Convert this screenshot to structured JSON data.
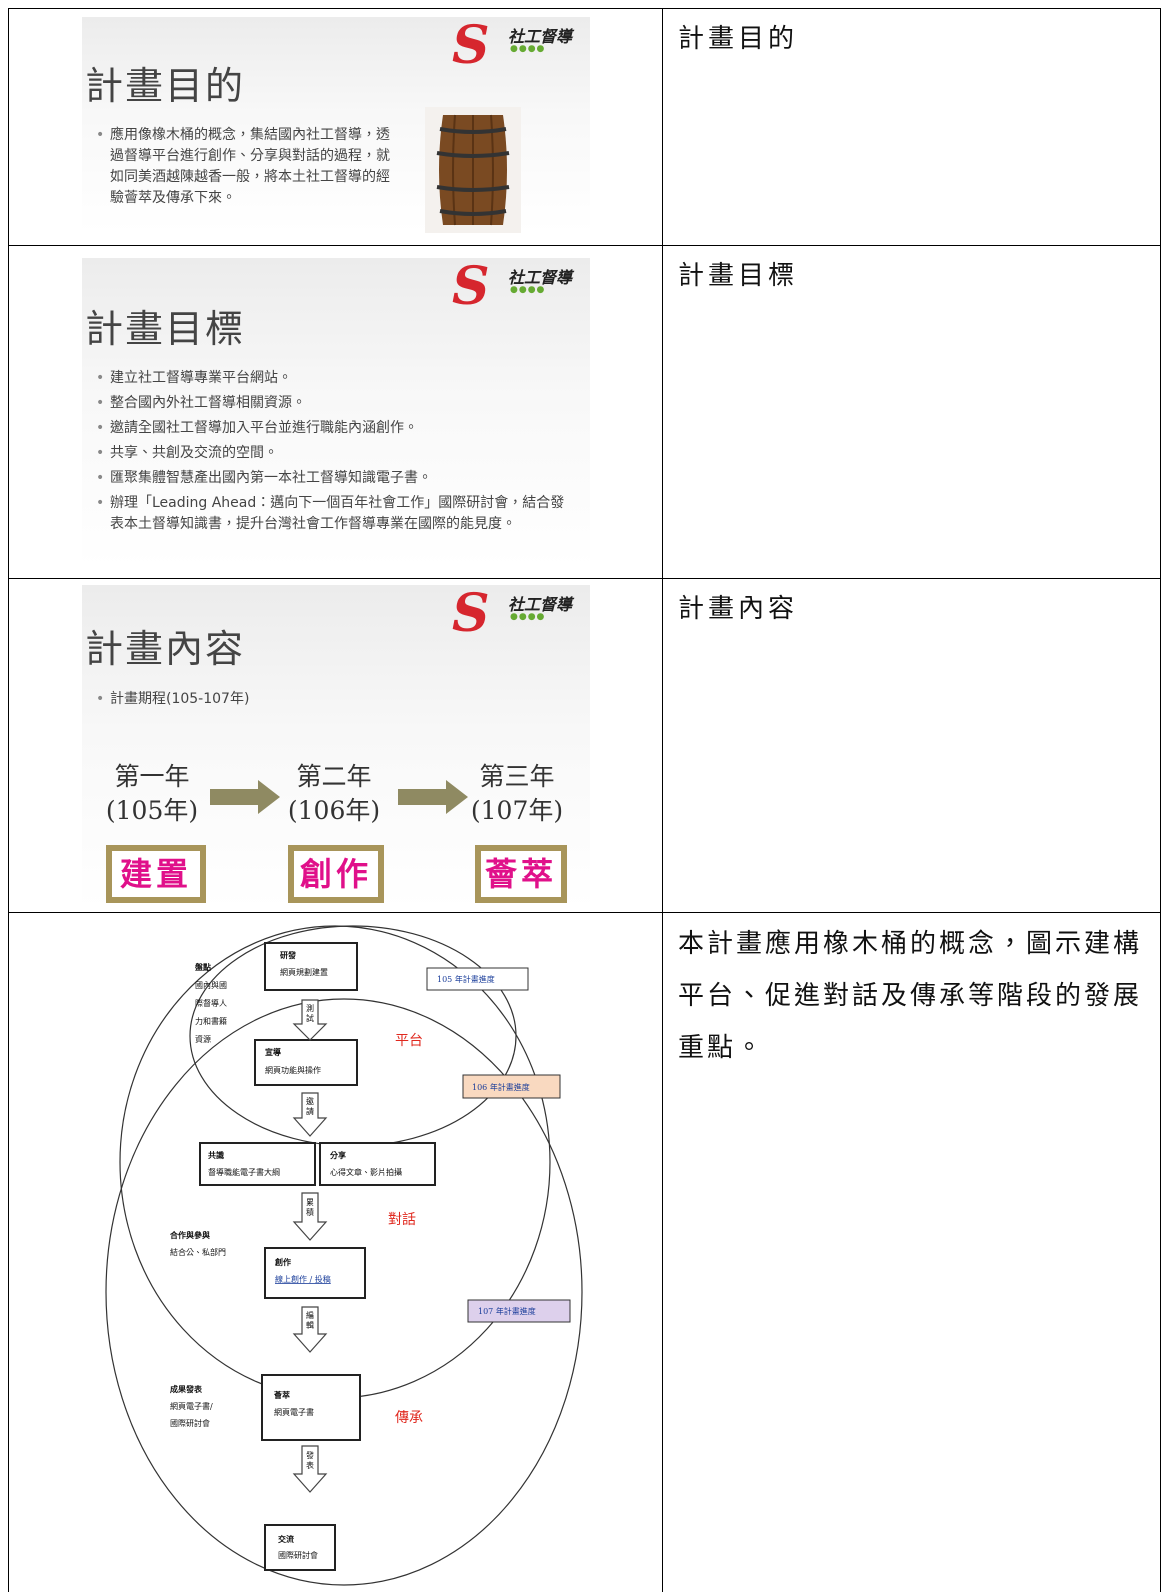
{
  "table": {
    "rows": [
      {
        "slide": {
          "logo": "社工督導",
          "title": "計畫目的",
          "bullets": [
            "應用像橡木桶的概念，集結國內社工督導，透過督導平台進行創作、分享與對話的過程，就如同美酒越陳越香一般，將本土社工督導的經驗薈萃及傳承下來。"
          ]
        },
        "caption": "計畫目的"
      },
      {
        "slide": {
          "logo": "社工督導",
          "title": "計畫目標",
          "bullets": [
            "建立社工督導專業平台網站。",
            "整合國內外社工督導相關資源。",
            "邀請全國社工督導加入平台並進行職能內涵創作。",
            "共享、共創及交流的空間。",
            "匯聚集體智慧產出國內第一本社工督導知識電子書。",
            "辦理「Leading Ahead：邁向下一個百年社會工作」國際研討會，結合發表本土督導知識書，提升台灣社會工作督導專業在國際的能見度。"
          ]
        },
        "caption": "計畫目標"
      },
      {
        "slide": {
          "logo": "社工督導",
          "title": "計畫內容",
          "bullets": [
            "計畫期程(105-107年)"
          ],
          "phases": [
            {
              "year": "第一年",
              "period": "(105年)",
              "stage": "建置"
            },
            {
              "year": "第二年",
              "period": "(106年)",
              "stage": "創作"
            },
            {
              "year": "第三年",
              "period": "(107年)",
              "stage": "薈萃"
            }
          ]
        },
        "caption": "計畫內容"
      },
      {
        "diagram": {
          "boxes": [
            {
              "title": "研發",
              "text": "網頁規劃建置"
            },
            {
              "title": "宣導",
              "text": "網頁功能與操作"
            },
            {
              "title": "共識",
              "text": "督導職能電子書大綱"
            },
            {
              "title": "分享",
              "text": "心得文章、影片拍攝"
            },
            {
              "title": "創作",
              "text": "線上創作 / 投稿"
            },
            {
              "title": "薈萃",
              "text": "網頁電子書"
            },
            {
              "title": "交流",
              "text": "國際研討會"
            }
          ],
          "side_notes": [
            {
              "title": "盤點",
              "text": [
                "國內與國",
                "際督導人",
                "力和書籍",
                "資源"
              ]
            },
            {
              "title": "合作與參與",
              "text": [
                "結合公、私部門"
              ]
            },
            {
              "title": "成果發表",
              "text": [
                "網頁電子書/",
                "國際研討會"
              ]
            }
          ],
          "arrows": [
            "測試",
            "邀請",
            "累積",
            "編輯",
            "發表"
          ],
          "stages": [
            "平台",
            "對話",
            "傳承"
          ],
          "progress": [
            "105 年計畫進度",
            "106 年計畫進度",
            "107 年計畫進度"
          ]
        },
        "caption": "本計畫應用橡木桶的概念，圖示建構平台、促進對話及傳承等階段的發展重點。"
      }
    ]
  }
}
